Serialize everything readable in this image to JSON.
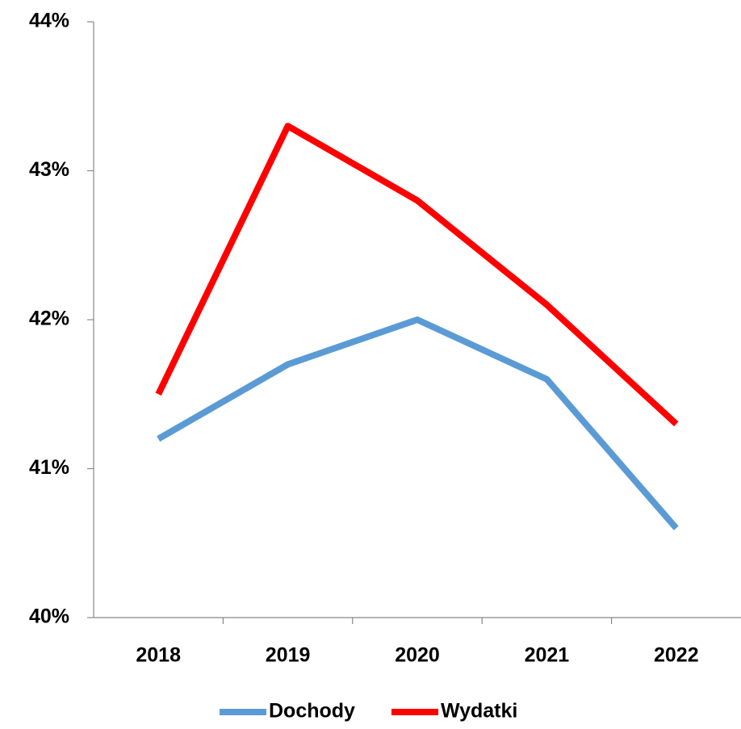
{
  "chart_data": {
    "type": "line",
    "categories": [
      "2018",
      "2019",
      "2020",
      "2021",
      "2022"
    ],
    "series": [
      {
        "name": "Dochody",
        "color": "#5b9bd5",
        "values": [
          41.2,
          41.7,
          42.0,
          41.6,
          40.6
        ]
      },
      {
        "name": "Wydatki",
        "color": "#ff0000",
        "values": [
          41.5,
          43.3,
          42.8,
          42.1,
          41.3
        ]
      }
    ],
    "ylim": [
      40,
      44
    ],
    "yticks": [
      {
        "value": 40,
        "label": "40%"
      },
      {
        "value": 41,
        "label": "41%"
      },
      {
        "value": 42,
        "label": "42%"
      },
      {
        "value": 43,
        "label": "43%"
      },
      {
        "value": 44,
        "label": "44%"
      }
    ],
    "grid": false,
    "legend": "bottom"
  }
}
